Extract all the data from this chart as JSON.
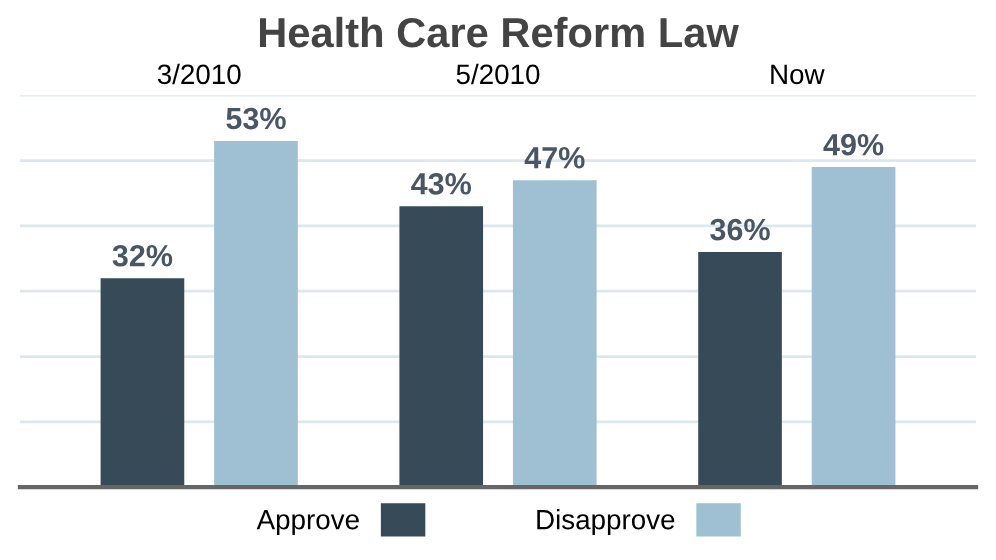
{
  "chart_data": {
    "type": "bar",
    "title": "Health Care Reform Law",
    "categories": [
      "3/2010",
      "5/2010",
      "Now"
    ],
    "series": [
      {
        "name": "Approve",
        "color": "#364b57",
        "values": [
          32,
          43,
          36
        ],
        "value_labels": [
          "32%",
          "43%",
          "36%"
        ]
      },
      {
        "name": "Disapprove",
        "color": "#9fbfd3",
        "values": [
          53,
          47,
          49
        ],
        "value_labels": [
          "53%",
          "47%",
          "49%"
        ]
      }
    ],
    "ylim": [
      0,
      60
    ],
    "yticks": [
      {
        "value": 0,
        "label": null
      },
      {
        "value": 10,
        "label": null
      },
      {
        "value": 20,
        "label": null
      },
      {
        "value": 30,
        "label": null
      },
      {
        "value": 40,
        "label": null
      },
      {
        "value": 50,
        "label": null
      },
      {
        "value": 60,
        "label": null
      }
    ],
    "grid": "y",
    "legend": "bottom",
    "tick_labels": "x"
  }
}
